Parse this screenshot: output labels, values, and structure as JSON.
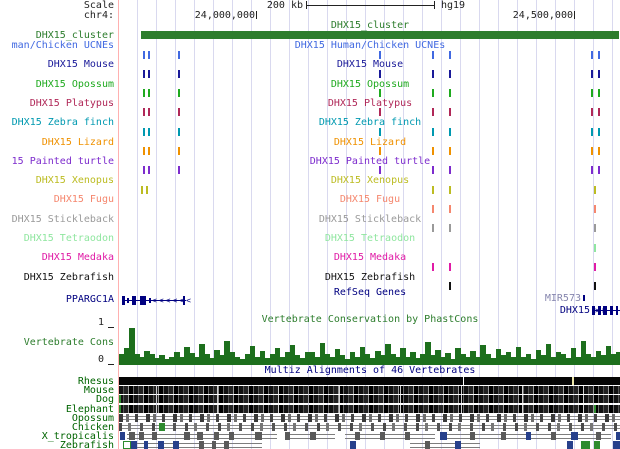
{
  "header": {
    "scale_label": "Scale",
    "chrom_label": "chr4:",
    "scale_text": "200 kb",
    "assembly": "hg19",
    "tick_left": "24,000,000",
    "tick_right": "24,500,000"
  },
  "cluster": {
    "label": "DHX15_cluster",
    "color": "#2d7d2d"
  },
  "tracks": [
    {
      "left_label": "man/Chicken UCNEs",
      "center_label": "DHX15 Human/Chicken UCNEs",
      "color": "#4169e1",
      "ticks": [
        4.8,
        5.8,
        11.8,
        51.8,
        62.4,
        65.7,
        94.0,
        95.4
      ]
    },
    {
      "left_label": "DHX15 Mouse",
      "center_label": "DHX15 Mouse",
      "color": "#1a1a99",
      "ticks": [
        4.8,
        5.8,
        11.8,
        51.8,
        62.4,
        65.7,
        94.0,
        95.4
      ]
    },
    {
      "left_label": "DHX15 Opossum",
      "center_label": "DHX15 Opossum",
      "color": "#1faa1f",
      "ticks": [
        4.8,
        5.8,
        11.8,
        51.8,
        62.4,
        65.7,
        94.0,
        95.4
      ]
    },
    {
      "left_label": "DHX15 Platypus",
      "center_label": "DHX15 Platypus",
      "color": "#b02858",
      "ticks": [
        4.8,
        5.8,
        11.8,
        51.8,
        62.4,
        65.7,
        94.0,
        95.4
      ]
    },
    {
      "left_label": "DHX15 Zebra finch",
      "center_label": "DHX15 Zebra finch",
      "color": "#0099b0",
      "ticks": [
        4.8,
        5.8,
        11.8,
        51.8,
        62.4,
        65.7,
        94.0,
        95.4
      ]
    },
    {
      "left_label": "DHX15 Lizard",
      "center_label": "DHX15 Lizard",
      "color": "#ef9100",
      "ticks": [
        4.8,
        5.8,
        11.8,
        51.8,
        62.4,
        65.7,
        94.0,
        95.4
      ]
    },
    {
      "left_label": "15 Painted turtle",
      "center_label": "DHX15 Painted turtle",
      "color": "#7d2ccd",
      "ticks": [
        4.8,
        5.8,
        11.8,
        51.8,
        62.4,
        65.7,
        94.0,
        95.4
      ]
    },
    {
      "left_label": "DHX15 Xenopus",
      "center_label": "DHX15 Xenopus",
      "color": "#bcbc22",
      "ticks": [
        4.4,
        5.4,
        62.4,
        65.7,
        94.6
      ]
    },
    {
      "left_label": "DHX15 Fugu",
      "center_label": "DHX15 Fugu",
      "color": "#f5876e",
      "ticks": [
        62.4,
        65.7,
        94.6
      ]
    },
    {
      "left_label": "DHX15 Stickleback",
      "center_label": "DHX15 Stickleback",
      "color": "#9a9a9a",
      "ticks": [
        62.4,
        65.7,
        94.6
      ]
    },
    {
      "left_label": "DHX15 Tetraodon",
      "center_label": "DHX15 Tetraodon",
      "color": "#90e6a0",
      "ticks": [
        94.6
      ]
    },
    {
      "left_label": "DHX15 Medaka",
      "center_label": "DHX15 Medaka",
      "color": "#e01ba6",
      "ticks": [
        62.4,
        65.7,
        94.6
      ]
    },
    {
      "left_label": "DHX15 Zebrafish",
      "center_label": "DHX15 Zebrafish",
      "color": "#111111",
      "ticks": [
        65.7,
        94.6
      ]
    }
  ],
  "refseq": {
    "track_label": "RefSeq Genes",
    "gene_left": "PPARGC1A",
    "gene_right_1": "MIR573",
    "gene_right_2": "DHX15",
    "color": "#000080"
  },
  "conservation": {
    "title": "Vertebrate Conservation by PhastCons",
    "left_label": "Vertebrate Cons",
    "y_max": "1",
    "y_min": "0",
    "color": "#1d6f1d",
    "values": [
      0.28,
      0.45,
      0.97,
      0.3,
      0.22,
      0.38,
      0.3,
      0.18,
      0.25,
      0.15,
      0.2,
      0.35,
      0.22,
      0.48,
      0.32,
      0.2,
      0.55,
      0.28,
      0.18,
      0.4,
      0.25,
      0.62,
      0.35,
      0.2,
      0.15,
      0.3,
      0.5,
      0.22,
      0.38,
      0.18,
      0.28,
      0.45,
      0.2,
      0.33,
      0.52,
      0.25,
      0.18,
      0.35,
      0.35,
      0.22,
      0.58,
      0.3,
      0.2,
      0.42,
      0.25,
      0.15,
      0.33,
      0.2,
      0.48,
      0.28,
      0.18,
      0.38,
      0.25,
      0.55,
      0.3,
      0.2,
      0.45,
      0.22,
      0.35,
      0.18,
      0.28,
      0.6,
      0.25,
      0.4,
      0.2,
      0.32,
      0.15,
      0.45,
      0.28,
      0.22,
      0.38,
      0.2,
      0.52,
      0.3,
      0.18,
      0.42,
      0.25,
      0.35,
      0.2,
      0.48,
      0.22,
      0.3,
      0.15,
      0.4,
      0.25,
      0.55,
      0.2,
      0.35,
      0.28,
      0.18,
      0.45,
      0.22,
      0.62,
      0.3,
      0.2,
      0.38,
      0.25,
      0.5,
      0.28,
      0.35
    ]
  },
  "multiz": {
    "title": "Multiz Alignments of 46 Vertebrates",
    "label_color": "#006400",
    "species": [
      {
        "name": "Rhesus",
        "style": "mz-solid",
        "segments": [
          [
            68.5,
            0.3,
            "seg-white"
          ],
          [
            90.2,
            0.4,
            "seg-yellow"
          ]
        ],
        "greenticks": []
      },
      {
        "name": "Mouse",
        "style": "mz-dense",
        "segments": [],
        "greenticks": []
      },
      {
        "name": "Dog",
        "style": "mz-dense",
        "segments": [],
        "greenticks": [
          0
        ]
      },
      {
        "name": "Elephant",
        "style": "mz-dense",
        "segments": [],
        "greenticks": [
          0,
          94.6
        ]
      },
      {
        "name": "Opossum",
        "style": "mz-med",
        "segments": [],
        "greenticks": []
      },
      {
        "name": "Chicken",
        "style": "mz-med2",
        "segments": [
          [
            8,
            1.2,
            "seg-green"
          ]
        ],
        "greenticks": []
      },
      {
        "name": "X_tropicalis",
        "style": "",
        "segments": [
          [
            1.5,
            30,
            "seg-line"
          ],
          [
            33,
            10,
            "seg-line"
          ],
          [
            45,
            18,
            "seg-line"
          ],
          [
            65,
            33,
            "seg-line"
          ],
          [
            0.2,
            0.9,
            "seg-blue"
          ],
          [
            2,
            1.2,
            "seg-box"
          ],
          [
            4,
            1,
            "seg-box"
          ],
          [
            6.5,
            1,
            "seg-box"
          ],
          [
            13,
            1.2,
            "seg-box"
          ],
          [
            15.5,
            1.2,
            "seg-box"
          ],
          [
            19,
            1,
            "seg-box"
          ],
          [
            22,
            1,
            "seg-box"
          ],
          [
            27,
            1.4,
            "seg-box"
          ],
          [
            33,
            1,
            "seg-box"
          ],
          [
            38,
            1.2,
            "seg-box"
          ],
          [
            47,
            1,
            "seg-box"
          ],
          [
            52,
            1,
            "seg-box"
          ],
          [
            57,
            1,
            "seg-box"
          ],
          [
            64,
            1.3,
            "seg-blue"
          ],
          [
            70,
            1,
            "seg-box"
          ],
          [
            76,
            1,
            "seg-box"
          ],
          [
            81,
            1,
            "seg-blue"
          ],
          [
            86,
            1,
            "seg-box"
          ],
          [
            90,
            1.4,
            "seg-blue"
          ],
          [
            95,
            1,
            "seg-box"
          ],
          [
            99,
            0.9,
            "seg-blue"
          ]
        ],
        "greenticks": []
      },
      {
        "name": "Zebrafish",
        "style": "",
        "segments": [
          [
            1.5,
            27,
            "seg-line"
          ],
          [
            58,
            14,
            "seg-line"
          ],
          [
            0.7,
            1.3,
            "seg-greenoutline"
          ],
          [
            2.3,
            1.2,
            "seg-blue"
          ],
          [
            5,
            0.7,
            "seg-blue"
          ],
          [
            7.8,
            1.1,
            "seg-blue"
          ],
          [
            10.8,
            1.1,
            "seg-blue"
          ],
          [
            16,
            1,
            "seg-box"
          ],
          [
            18.5,
            0.8,
            "seg-box"
          ],
          [
            21,
            1,
            "seg-box"
          ],
          [
            46,
            1.2,
            "seg-blue"
          ],
          [
            61,
            1,
            "seg-box"
          ],
          [
            67,
            1.1,
            "seg-blue"
          ],
          [
            89.2,
            1.2,
            "seg-blue"
          ],
          [
            92,
            1.8,
            "seg-green"
          ],
          [
            94.6,
            1.2,
            "seg-green"
          ],
          [
            98.5,
            1.4,
            "seg-blue"
          ]
        ],
        "greenticks": []
      }
    ]
  },
  "layout_colors": {
    "gridline": "#d9d9ef",
    "cursor_line": "#ffb0b0",
    "header_text": "#222222"
  }
}
